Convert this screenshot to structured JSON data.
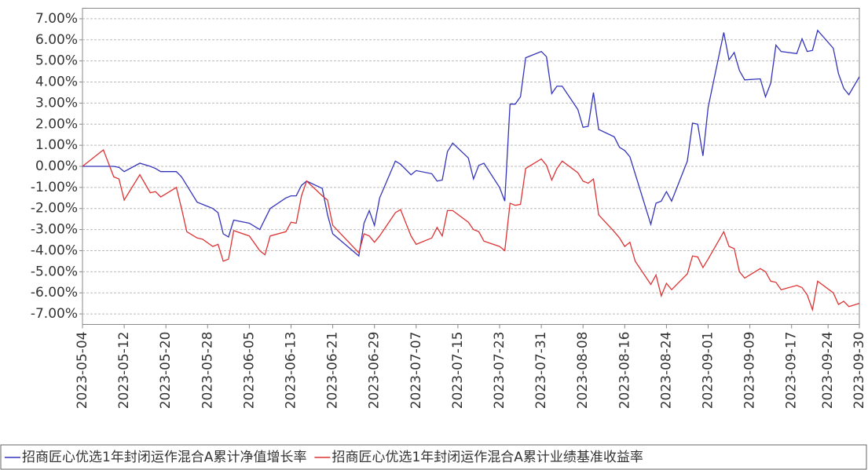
{
  "chart_data": {
    "type": "line",
    "x": [
      "2023-05-04",
      "2023-05-08",
      "2023-05-10",
      "2023-05-11",
      "2023-05-12",
      "2023-05-15",
      "2023-05-17",
      "2023-05-18",
      "2023-05-19",
      "2023-05-22",
      "2023-05-23",
      "2023-05-24",
      "2023-05-26",
      "2023-05-27",
      "2023-05-29",
      "2023-05-30",
      "2023-05-31",
      "2023-06-01",
      "2023-06-02",
      "2023-06-05",
      "2023-06-07",
      "2023-06-08",
      "2023-06-09",
      "2023-06-12",
      "2023-06-13",
      "2023-06-14",
      "2023-06-15",
      "2023-06-16",
      "2023-06-19",
      "2023-06-20",
      "2023-06-21",
      "2023-06-26",
      "2023-06-27",
      "2023-06-28",
      "2023-06-29",
      "2023-06-30",
      "2023-07-03",
      "2023-07-04",
      "2023-07-06",
      "2023-07-07",
      "2023-07-10",
      "2023-07-11",
      "2023-07-12",
      "2023-07-13",
      "2023-07-14",
      "2023-07-17",
      "2023-07-18",
      "2023-07-19",
      "2023-07-20",
      "2023-07-23",
      "2023-07-24",
      "2023-07-25",
      "2023-07-26",
      "2023-07-27",
      "2023-07-28",
      "2023-07-31",
      "2023-08-01",
      "2023-08-02",
      "2023-08-03",
      "2023-08-04",
      "2023-08-07",
      "2023-08-08",
      "2023-08-09",
      "2023-08-10",
      "2023-08-11",
      "2023-08-14",
      "2023-08-15",
      "2023-08-16",
      "2023-08-17",
      "2023-08-18",
      "2023-08-21",
      "2023-08-22",
      "2023-08-23",
      "2023-08-24",
      "2023-08-25",
      "2023-08-28",
      "2023-08-29",
      "2023-08-30",
      "2023-08-31",
      "2023-09-01",
      "2023-09-04",
      "2023-09-05",
      "2023-09-06",
      "2023-09-07",
      "2023-09-08",
      "2023-09-11",
      "2023-09-12",
      "2023-09-13",
      "2023-09-14",
      "2023-09-15",
      "2023-09-18",
      "2023-09-19",
      "2023-09-20",
      "2023-09-21",
      "2023-09-22",
      "2023-09-25",
      "2023-09-26",
      "2023-09-27",
      "2023-09-28",
      "2023-09-30"
    ],
    "series": [
      {
        "name": "招商匠心优选1年封闭运作混合A累计净值增长率",
        "color": "#3333bb",
        "values": [
          0,
          0,
          0,
          -0.05,
          -0.25,
          0.15,
          0,
          -0.1,
          -0.25,
          -0.25,
          -0.5,
          -0.9,
          -1.7,
          -1.8,
          -2.0,
          -2.2,
          -3.2,
          -3.35,
          -2.55,
          -2.7,
          -3.0,
          -2.5,
          -2.0,
          -1.5,
          -1.4,
          -1.4,
          -0.9,
          -0.7,
          -1.05,
          -2.3,
          -3.2,
          -4.25,
          -2.7,
          -2.1,
          -2.8,
          -1.5,
          0.25,
          0.1,
          -0.4,
          -0.2,
          -0.35,
          -0.7,
          -0.65,
          0.7,
          1.1,
          0.4,
          -0.6,
          0.05,
          0.15,
          -1.0,
          -1.65,
          2.95,
          2.95,
          3.3,
          5.15,
          5.45,
          5.2,
          3.45,
          3.8,
          3.8,
          2.7,
          1.85,
          1.9,
          3.5,
          1.75,
          1.4,
          0.9,
          0.75,
          0.45,
          -0.35,
          -2.75,
          -1.75,
          -1.65,
          -1.2,
          -1.65,
          0.25,
          2.05,
          2.0,
          0.5,
          2.8,
          6.35,
          5.05,
          5.4,
          4.55,
          4.1,
          4.15,
          3.3,
          3.95,
          5.75,
          5.45,
          5.35,
          6.05,
          5.45,
          5.5,
          6.45,
          5.6,
          4.4,
          3.7,
          3.4,
          4.25
        ]
      },
      {
        "name": "招商匠心优选1年封闭运作混合A累计业绩基准收益率",
        "color": "#dd3333",
        "values": [
          0,
          0.78,
          -0.5,
          -0.6,
          -1.6,
          -0.4,
          -1.25,
          -1.2,
          -1.45,
          -1.0,
          -2.0,
          -3.1,
          -3.4,
          -3.45,
          -3.8,
          -3.7,
          -4.5,
          -4.4,
          -3.05,
          -3.3,
          -4.0,
          -4.2,
          -3.3,
          -3.1,
          -2.65,
          -2.7,
          -1.4,
          -0.7,
          -1.4,
          -1.6,
          -2.8,
          -4.1,
          -3.2,
          -3.3,
          -3.6,
          -3.3,
          -2.2,
          -2.05,
          -3.3,
          -3.7,
          -3.4,
          -2.9,
          -3.3,
          -2.1,
          -2.1,
          -2.65,
          -3.0,
          -3.1,
          -3.55,
          -3.8,
          -4.0,
          -1.75,
          -1.85,
          -1.8,
          -0.1,
          0.35,
          0.05,
          -0.65,
          -0.1,
          0.25,
          -0.3,
          -0.7,
          -0.8,
          -0.6,
          -2.3,
          -3.1,
          -3.4,
          -3.8,
          -3.6,
          -4.5,
          -5.6,
          -5.15,
          -6.15,
          -5.55,
          -5.85,
          -5.1,
          -4.25,
          -4.3,
          -4.8,
          -4.4,
          -3.1,
          -3.8,
          -3.9,
          -5.0,
          -5.3,
          -4.85,
          -5.0,
          -5.45,
          -5.5,
          -5.85,
          -5.65,
          -5.75,
          -6.1,
          -6.8,
          -5.45,
          -6.0,
          -6.55,
          -6.4,
          -6.65,
          -6.5
        ]
      }
    ],
    "xlim": [
      "2023-05-04",
      "2023-09-30"
    ],
    "xticks": [
      "2023-05-04",
      "2023-05-12",
      "2023-05-20",
      "2023-05-28",
      "2023-06-05",
      "2023-06-13",
      "2023-06-21",
      "2023-06-29",
      "2023-07-07",
      "2023-07-15",
      "2023-07-23",
      "2023-07-31",
      "2023-08-08",
      "2023-08-16",
      "2023-08-24",
      "2023-09-01",
      "2023-09-09",
      "2023-09-17",
      "2023-09-24",
      "2023-09-30"
    ],
    "ylim": [
      -7.5,
      7.5
    ],
    "yticks": [
      {
        "value": 7,
        "label": "7.00%"
      },
      {
        "value": 6,
        "label": "6.00%"
      },
      {
        "value": 5,
        "label": "5.00%"
      },
      {
        "value": 4,
        "label": "4.00%"
      },
      {
        "value": 3,
        "label": "3.00%"
      },
      {
        "value": 2,
        "label": "2.00%"
      },
      {
        "value": 1,
        "label": "1.00%"
      },
      {
        "value": 0,
        "label": "0.00%"
      },
      {
        "value": -1,
        "label": "-1.00%"
      },
      {
        "value": -2,
        "label": "-2.00%"
      },
      {
        "value": -3,
        "label": "-3.00%"
      },
      {
        "value": -4,
        "label": "-4.00%"
      },
      {
        "value": -5,
        "label": "-5.00%"
      },
      {
        "value": -6,
        "label": "-6.00%"
      },
      {
        "value": -7,
        "label": "-7.00%"
      }
    ],
    "grid": true,
    "legend": "bottom"
  }
}
